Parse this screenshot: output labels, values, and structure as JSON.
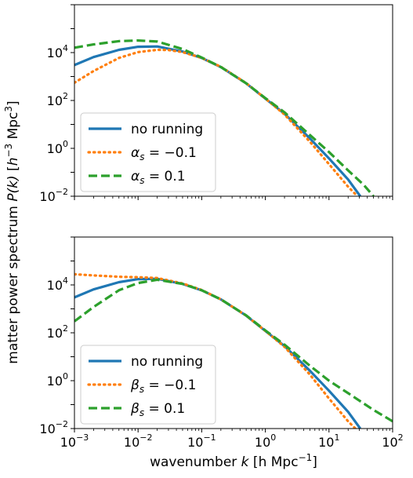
{
  "figure": {
    "ylabel_main": "matter power spectrum ",
    "ylabel_func": "P(k)",
    "ylabel_unit_open": " [",
    "ylabel_unit_h": "h",
    "ylabel_unit_exp": "−3",
    "ylabel_unit_mpc": " Mpc",
    "ylabel_unit_mpc_exp": "3",
    "ylabel_unit_close": "]"
  },
  "chart_data": [
    {
      "type": "line",
      "xscale": "log",
      "yscale": "log",
      "xlim": [
        0.001,
        100
      ],
      "ylim": [
        0.01,
        1000000
      ],
      "xlabel": "",
      "ylabel": "matter power spectrum P(k) [h^-3 Mpc^3]",
      "y_ticks": [
        {
          "base": "10",
          "exp": "4",
          "value": 10000
        },
        {
          "base": "10",
          "exp": "2",
          "value": 100
        },
        {
          "base": "10",
          "exp": "0",
          "value": 1
        },
        {
          "base": "10",
          "exp": "−2",
          "value": 0.01
        }
      ],
      "legend_position": "lower-left",
      "series": [
        {
          "name": "no running",
          "style": "solid",
          "color": "#1f77b4",
          "x": [
            0.001,
            0.002,
            0.005,
            0.01,
            0.02,
            0.05,
            0.1,
            0.2,
            0.5,
            1,
            2,
            5,
            10,
            20,
            31
          ],
          "y": [
            3000,
            6500,
            13000,
            17500,
            18000,
            11000,
            6000,
            2500,
            520,
            120,
            28,
            2.6,
            0.38,
            0.05,
            0.01
          ]
        },
        {
          "name": "α_s = −0.1",
          "symbol": "α",
          "subscript": "s",
          "value_text": " = −0.1",
          "style": "dotted",
          "color": "#ff7f0e",
          "x": [
            0.001,
            0.002,
            0.005,
            0.01,
            0.02,
            0.03,
            0.05,
            0.1,
            0.2,
            0.5,
            1,
            2,
            5,
            10,
            20,
            28
          ],
          "y": [
            550,
            1700,
            6000,
            10500,
            13000,
            12800,
            10500,
            6000,
            2550,
            530,
            120,
            26,
            1.9,
            0.22,
            0.025,
            0.01
          ]
        },
        {
          "name": "α_s = 0.1",
          "symbol": "α",
          "subscript": "s",
          "value_text": " = 0.1",
          "style": "dashed",
          "color": "#2ca02c",
          "x": [
            0.001,
            0.002,
            0.005,
            0.01,
            0.02,
            0.05,
            0.1,
            0.2,
            0.5,
            1,
            2,
            5,
            10,
            20,
            35,
            50
          ],
          "y": [
            16000,
            22000,
            30000,
            32000,
            29000,
            14000,
            6200,
            2500,
            520,
            125,
            32,
            3.6,
            0.7,
            0.12,
            0.03,
            0.01
          ]
        }
      ]
    },
    {
      "type": "line",
      "xscale": "log",
      "yscale": "log",
      "xlim": [
        0.001,
        100
      ],
      "ylim": [
        0.01,
        1000000
      ],
      "xlabel": "wavenumber k [h Mpc⁻¹]",
      "xlabel_main": "wavenumber ",
      "xlabel_var": "k",
      "xlabel_unit": " [h Mpc",
      "xlabel_exp": "−1",
      "xlabel_close": "]",
      "ylabel": "",
      "x_ticks": [
        {
          "base": "10",
          "exp": "−3",
          "value": 0.001
        },
        {
          "base": "10",
          "exp": "−2",
          "value": 0.01
        },
        {
          "base": "10",
          "exp": "−1",
          "value": 0.1
        },
        {
          "base": "10",
          "exp": "0",
          "value": 1
        },
        {
          "base": "10",
          "exp": "1",
          "value": 10
        },
        {
          "base": "10",
          "exp": "2",
          "value": 100
        }
      ],
      "y_ticks": [
        {
          "base": "10",
          "exp": "4",
          "value": 10000
        },
        {
          "base": "10",
          "exp": "2",
          "value": 100
        },
        {
          "base": "10",
          "exp": "0",
          "value": 1
        },
        {
          "base": "10",
          "exp": "−2",
          "value": 0.01
        }
      ],
      "legend_position": "lower-left",
      "series": [
        {
          "name": "no running",
          "style": "solid",
          "color": "#1f77b4",
          "x": [
            0.001,
            0.002,
            0.005,
            0.01,
            0.02,
            0.05,
            0.1,
            0.2,
            0.5,
            1,
            2,
            5,
            10,
            20,
            31
          ],
          "y": [
            3000,
            6500,
            13000,
            17500,
            18000,
            11000,
            6000,
            2500,
            520,
            120,
            28,
            2.6,
            0.38,
            0.05,
            0.01
          ]
        },
        {
          "name": "β_s = −0.1",
          "symbol": "β",
          "subscript": "s",
          "value_text": " = −0.1",
          "style": "dotted",
          "color": "#ff7f0e",
          "x": [
            0.001,
            0.002,
            0.005,
            0.01,
            0.02,
            0.05,
            0.1,
            0.2,
            0.5,
            1,
            2,
            5,
            10,
            20,
            26
          ],
          "y": [
            28000,
            25000,
            22000,
            21000,
            19500,
            11500,
            6100,
            2500,
            520,
            120,
            26,
            1.8,
            0.18,
            0.02,
            0.01
          ]
        },
        {
          "name": "β_s = 0.1",
          "symbol": "β",
          "subscript": "s",
          "value_text": " = 0.1",
          "style": "dashed",
          "color": "#2ca02c",
          "x": [
            0.001,
            0.002,
            0.005,
            0.01,
            0.02,
            0.05,
            0.1,
            0.2,
            0.5,
            1,
            2,
            5,
            10,
            20,
            50,
            100
          ],
          "y": [
            300,
            1200,
            6000,
            12000,
            16500,
            11000,
            6000,
            2500,
            530,
            125,
            32,
            4.2,
            1.0,
            0.3,
            0.06,
            0.02
          ]
        }
      ]
    }
  ]
}
